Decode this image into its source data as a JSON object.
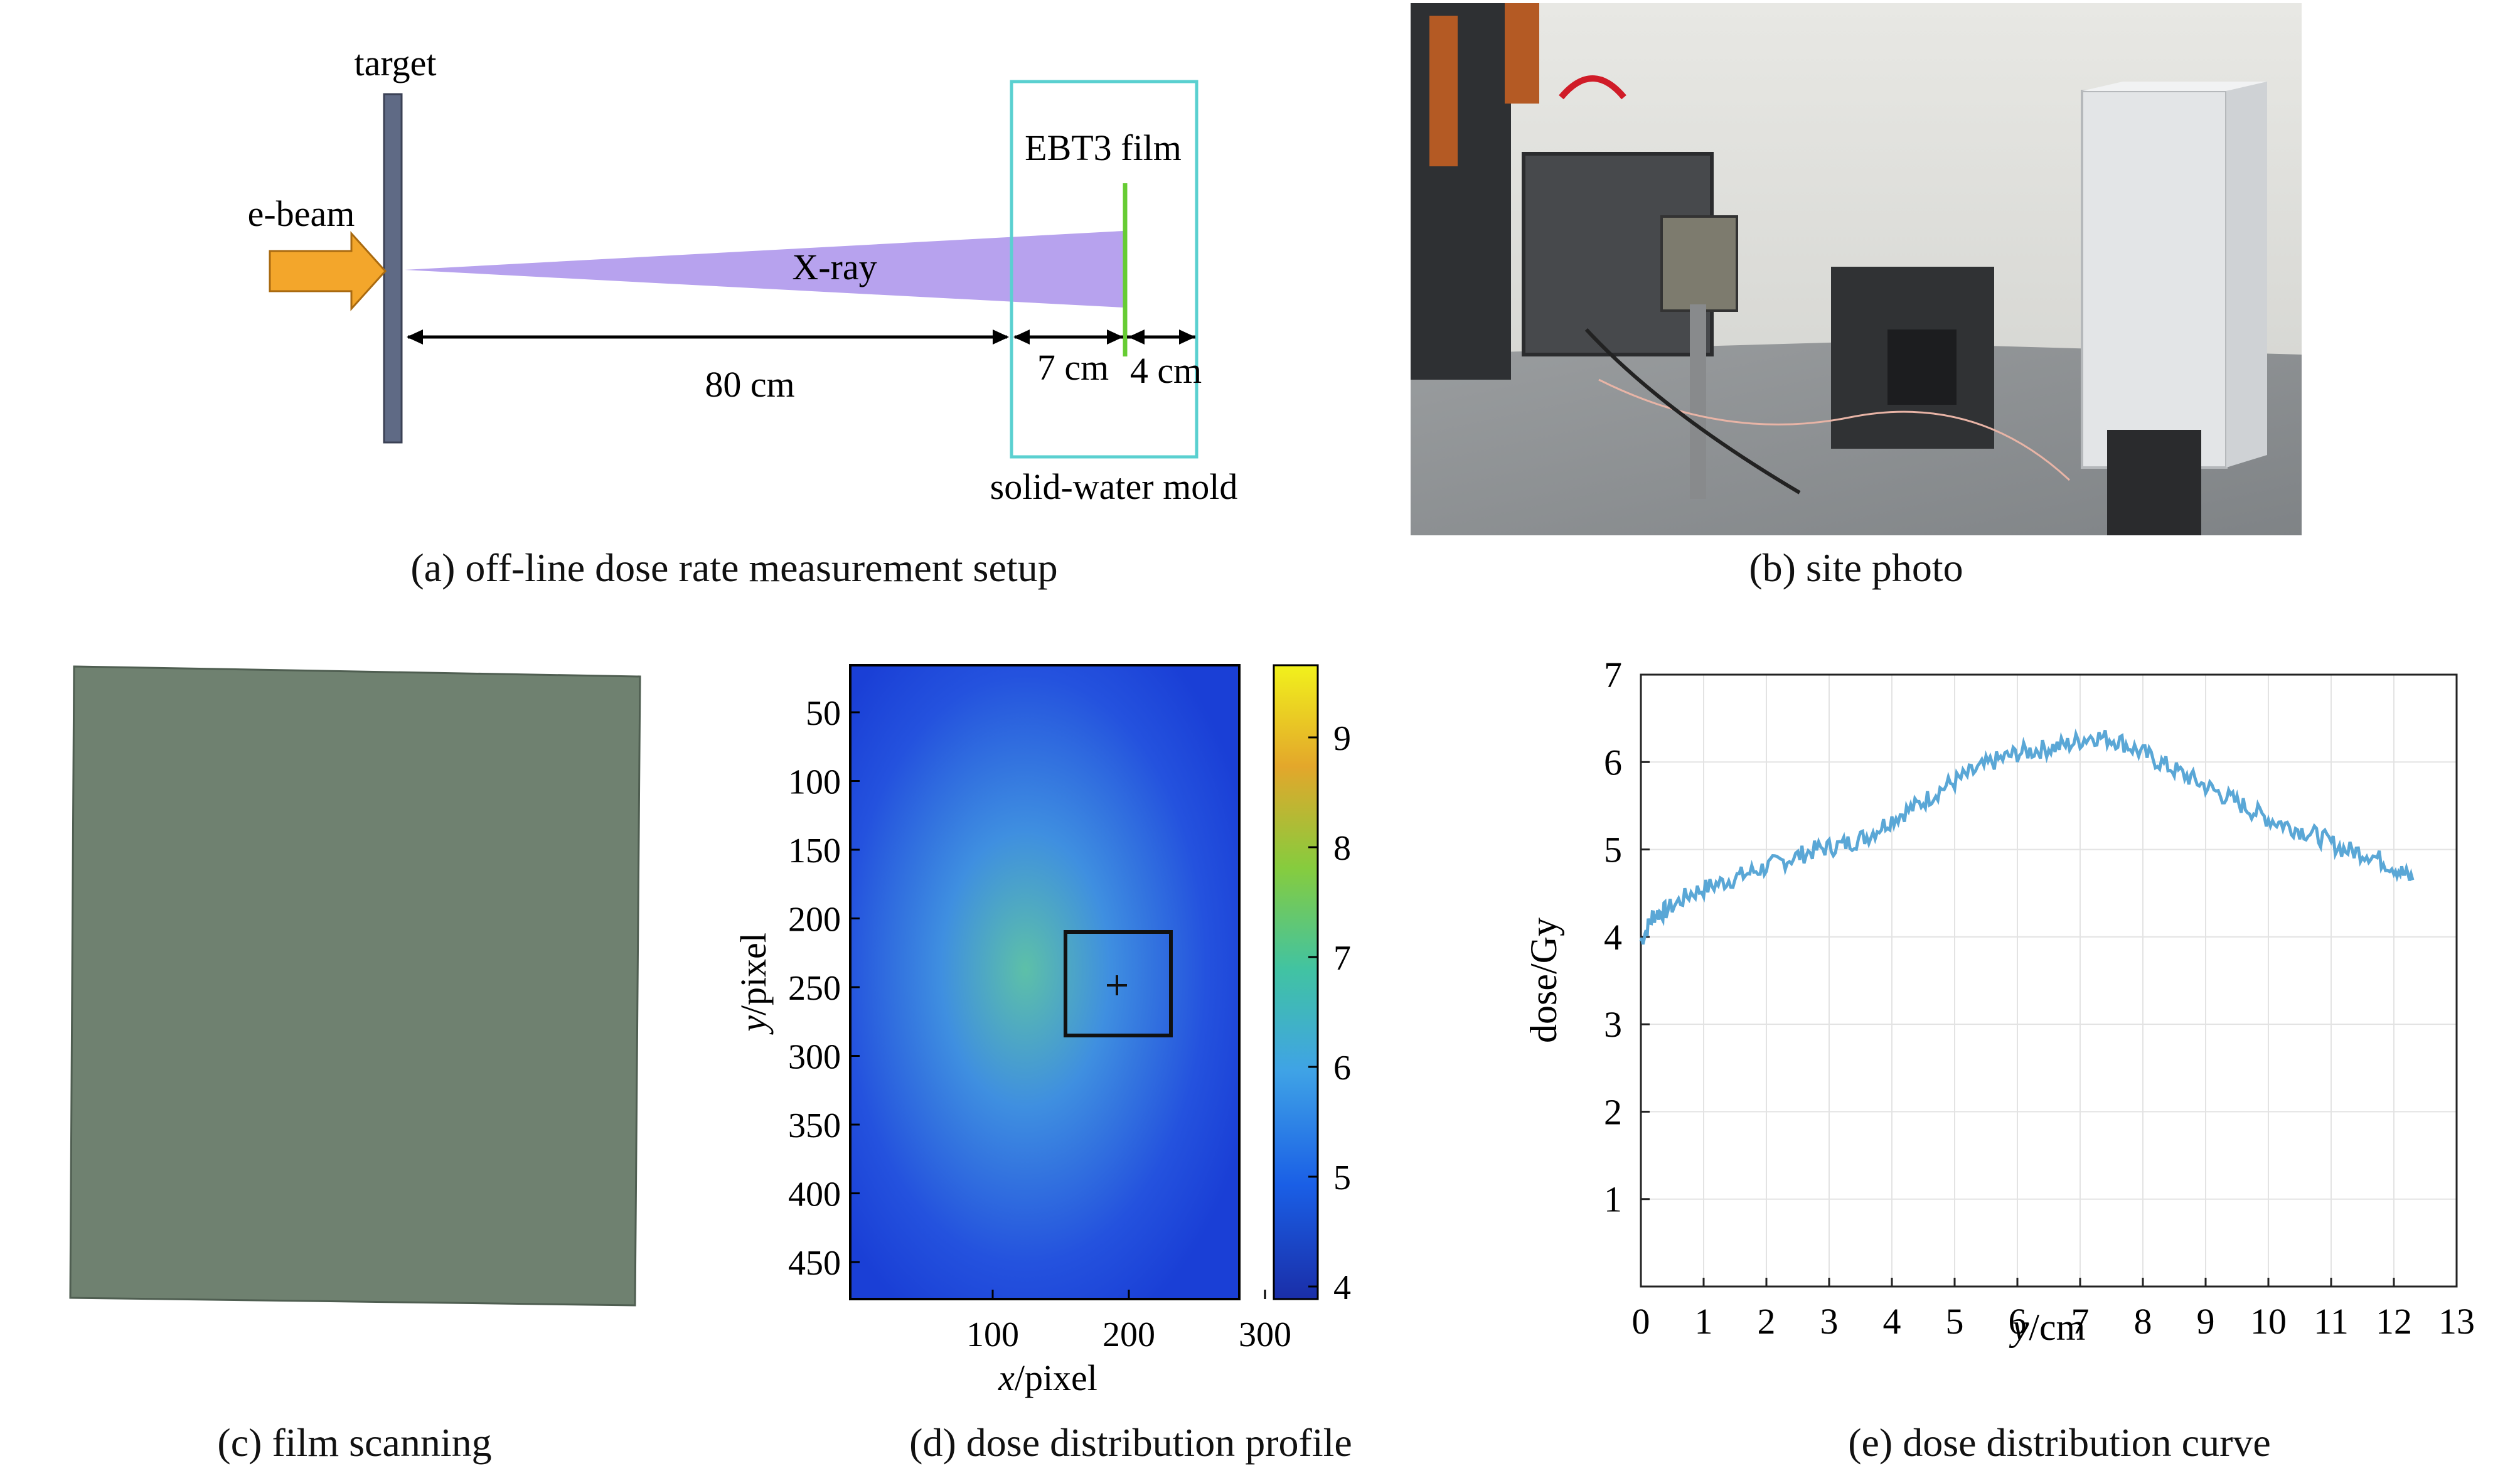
{
  "panels": {
    "a": {
      "caption": "(a) off-line dose rate measurement setup",
      "labels": {
        "target": "target",
        "ebeam": "e-beam",
        "xray": "X-ray",
        "film": "EBT3 film",
        "mold": "solid-water mold",
        "d1": "80 cm",
        "d2": "7 cm",
        "d3": "4 cm"
      },
      "colors": {
        "target": "#5f6a85",
        "arrow": "#f3a62b",
        "beam": "#b7a2ee",
        "film": "#66cc33",
        "mold": "#5ad0d0"
      }
    },
    "b": {
      "caption": "(b) site photo"
    },
    "c": {
      "caption": "(c) film scanning",
      "colors": {
        "film": "#6f8170"
      }
    },
    "d": {
      "caption": "(d) dose distribution profile",
      "xlabel_var": "x",
      "xlabel_unit": "/pixel",
      "ylabel_var": "y",
      "ylabel_unit": "/pixel",
      "xticks": [
        "100",
        "200",
        "300"
      ],
      "yticks": [
        "50",
        "100",
        "150",
        "200",
        "250",
        "300",
        "350",
        "400",
        "450"
      ],
      "colorbar_ticks": [
        "9",
        "8",
        "7",
        "6",
        "5",
        "4"
      ],
      "colors": {
        "low": "#1a3fd6",
        "mid": "#3f8fe0",
        "high": "#5dc0a8"
      }
    },
    "e": {
      "caption": "(e) dose distribution curve"
    }
  },
  "chart_data": {
    "type": "line",
    "title": "",
    "xlabel_var": "y",
    "xlabel_unit": "/cm",
    "ylabel": "dose/Gy",
    "xlim": [
      0,
      13
    ],
    "ylim": [
      0,
      7
    ],
    "xticks": [
      "0",
      "1",
      "2",
      "3",
      "4",
      "5",
      "6",
      "7",
      "8",
      "9",
      "10",
      "11",
      "12",
      "13"
    ],
    "yticks": [
      "1",
      "2",
      "3",
      "4",
      "5",
      "6",
      "7"
    ],
    "grid": true,
    "color": "#5aa7d6",
    "x": [
      0.0,
      0.2,
      0.4,
      0.8,
      1.2,
      1.6,
      2.0,
      2.4,
      2.8,
      3.2,
      3.6,
      4.0,
      4.4,
      4.8,
      5.2,
      5.6,
      6.0,
      6.4,
      6.8,
      7.2,
      7.6,
      8.0,
      8.4,
      8.8,
      9.2,
      9.6,
      10.0,
      10.4,
      10.8,
      11.2,
      11.6,
      12.0,
      12.3
    ],
    "y": [
      3.95,
      4.25,
      4.3,
      4.5,
      4.6,
      4.7,
      4.8,
      4.9,
      5.0,
      5.05,
      5.15,
      5.35,
      5.5,
      5.7,
      5.85,
      6.0,
      6.1,
      6.15,
      6.2,
      6.3,
      6.25,
      6.1,
      5.95,
      5.8,
      5.65,
      5.5,
      5.35,
      5.25,
      5.15,
      5.0,
      4.95,
      4.8,
      4.65
    ]
  }
}
